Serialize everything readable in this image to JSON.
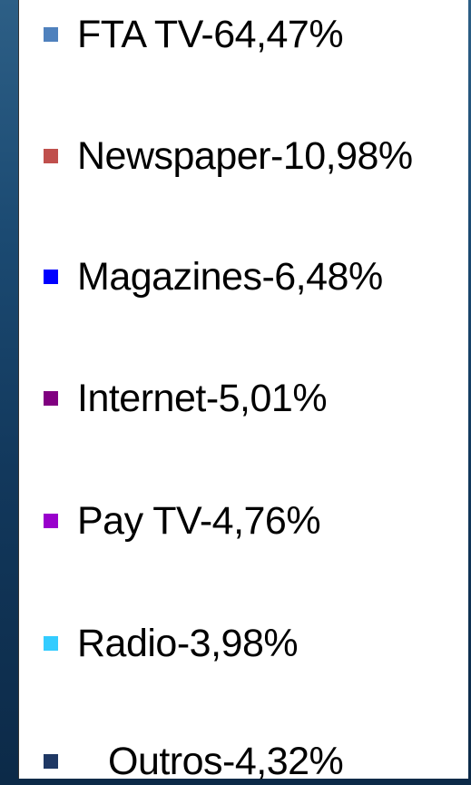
{
  "legend": {
    "items": [
      {
        "label": "FTA TV-64,47%",
        "color": "#4f81bd"
      },
      {
        "label": "Newspaper-10,98%",
        "color": "#c0504d"
      },
      {
        "label": "Magazines-6,48%",
        "color": "#0000ff"
      },
      {
        "label": "Internet-5,01%",
        "color": "#800080"
      },
      {
        "label": "Pay TV-4,76%",
        "color": "#9900cc"
      },
      {
        "label": "Radio-3,98%",
        "color": "#33ccff"
      },
      {
        "label": "Outros-4,32%",
        "color": "#1f3864"
      }
    ]
  }
}
